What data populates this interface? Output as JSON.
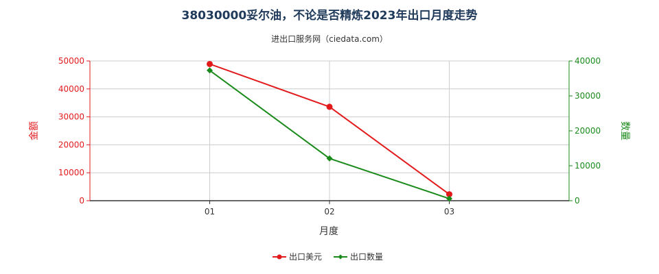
{
  "colors": {
    "series_amount": "#e31a1c",
    "series_quantity": "#1a8a1a",
    "title": "#1f3a5a",
    "grid": "#cccccc",
    "axis": "#333333"
  },
  "chart_data": {
    "type": "line",
    "title": "38030000妥尔油，不论是否精炼2023年出口月度走势",
    "subtitle": "进出口服务网（ciedata.com）",
    "xlabel": "月度",
    "ylabel_left": "金额",
    "ylabel_right": "数量",
    "categories": [
      "01",
      "02",
      "03"
    ],
    "ylim_left": [
      0,
      50000
    ],
    "ylim_right": [
      0,
      40000
    ],
    "yticks_left": [
      "0",
      "10000",
      "20000",
      "30000",
      "40000",
      "50000"
    ],
    "yticks_right": [
      "0",
      "10000",
      "20000",
      "30000",
      "40000"
    ],
    "grid": true,
    "legend_position": "bottom",
    "series": [
      {
        "name": "出口美元",
        "axis": "left",
        "values": [
          48900,
          33600,
          2300
        ]
      },
      {
        "name": "出口数量",
        "axis": "right",
        "values": [
          37300,
          12100,
          600
        ]
      }
    ]
  }
}
